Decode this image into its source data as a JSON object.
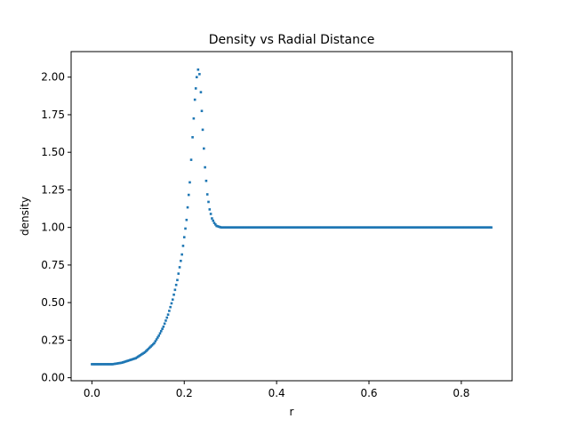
{
  "chart_data": {
    "type": "scatter",
    "title": "Density vs Radial Distance",
    "xlabel": "r",
    "ylabel": "density",
    "xlim": [
      -0.045,
      0.91
    ],
    "ylim": [
      -0.02,
      2.17
    ],
    "x_ticks": [
      0.0,
      0.2,
      0.4,
      0.6,
      0.8
    ],
    "x_tick_labels": [
      "0.0",
      "0.2",
      "0.4",
      "0.6",
      "0.8"
    ],
    "y_ticks": [
      0.0,
      0.25,
      0.5,
      0.75,
      1.0,
      1.25,
      1.5,
      1.75,
      2.0
    ],
    "y_tick_labels": [
      "0.00",
      "0.25",
      "0.50",
      "0.75",
      "1.00",
      "1.25",
      "1.50",
      "1.75",
      "2.00"
    ],
    "grid": false,
    "legend": "none",
    "series": [
      {
        "color": "#1f77b4",
        "marker": "square",
        "points": [
          [
            0.0,
            0.09
          ],
          [
            0.033,
            0.09
          ],
          [
            0.045,
            0.09
          ],
          [
            0.055,
            0.095
          ],
          [
            0.065,
            0.1
          ],
          [
            0.075,
            0.11
          ],
          [
            0.085,
            0.12
          ],
          [
            0.095,
            0.13
          ],
          [
            0.105,
            0.15
          ],
          [
            0.115,
            0.17
          ],
          [
            0.125,
            0.2
          ],
          [
            0.135,
            0.23
          ],
          [
            0.145,
            0.28
          ],
          [
            0.155,
            0.34
          ],
          [
            0.165,
            0.42
          ],
          [
            0.175,
            0.52
          ],
          [
            0.185,
            0.65
          ],
          [
            0.195,
            0.82
          ],
          [
            0.205,
            1.05
          ],
          [
            0.212,
            1.3
          ],
          [
            0.218,
            1.6
          ],
          [
            0.223,
            1.85
          ],
          [
            0.227,
            2.0
          ],
          [
            0.23,
            2.05
          ],
          [
            0.233,
            2.02
          ],
          [
            0.236,
            1.9
          ],
          [
            0.24,
            1.65
          ],
          [
            0.245,
            1.4
          ],
          [
            0.25,
            1.22
          ],
          [
            0.255,
            1.12
          ],
          [
            0.26,
            1.06
          ],
          [
            0.265,
            1.03
          ],
          [
            0.27,
            1.01
          ],
          [
            0.28,
            1.0
          ],
          [
            0.3,
            1.0
          ],
          [
            0.35,
            1.0
          ],
          [
            0.4,
            1.0
          ],
          [
            0.45,
            1.0
          ],
          [
            0.5,
            1.0
          ],
          [
            0.55,
            1.0
          ],
          [
            0.6,
            1.0
          ],
          [
            0.65,
            1.0
          ],
          [
            0.7,
            1.0
          ],
          [
            0.75,
            1.0
          ],
          [
            0.8,
            1.0
          ],
          [
            0.82,
            1.0
          ],
          [
            0.84,
            1.0
          ],
          [
            0.86,
            1.0
          ],
          [
            0.865,
            1.0
          ]
        ]
      }
    ]
  }
}
